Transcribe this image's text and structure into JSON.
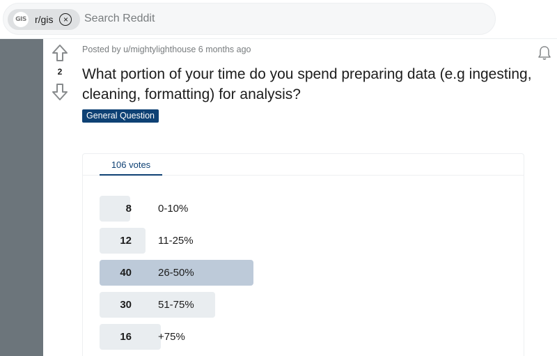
{
  "header": {
    "community_chip": {
      "logo_text": "GIS",
      "label": "r/gis"
    },
    "search": {
      "placeholder": "Search Reddit"
    }
  },
  "post": {
    "vote_count": "2",
    "meta": "Posted by u/mightylighthouse 6 months ago",
    "title": "What portion of your time do you spend preparing data (e.g ingesting, cleaning, formatting) for analysis?",
    "flair": "General Question",
    "icons": {
      "upvote": "arrow-up-icon",
      "downvote": "arrow-down-icon",
      "notify": "bell-icon"
    }
  },
  "poll": {
    "tab_label": "106 votes",
    "total_votes": 106,
    "max_votes": 40,
    "options": [
      {
        "count": "8",
        "label": "0-10%",
        "votes": 8,
        "leading": false
      },
      {
        "count": "12",
        "label": "11-25%",
        "votes": 12,
        "leading": false
      },
      {
        "count": "40",
        "label": "26-50%",
        "votes": 40,
        "leading": true
      },
      {
        "count": "30",
        "label": "51-75%",
        "votes": 30,
        "leading": false
      },
      {
        "count": "16",
        "label": "+75%",
        "votes": 16,
        "leading": false
      }
    ],
    "colors": {
      "bar": "#e9edf0",
      "leading_bar": "#bdcad9",
      "accent": "#0e4174"
    }
  }
}
